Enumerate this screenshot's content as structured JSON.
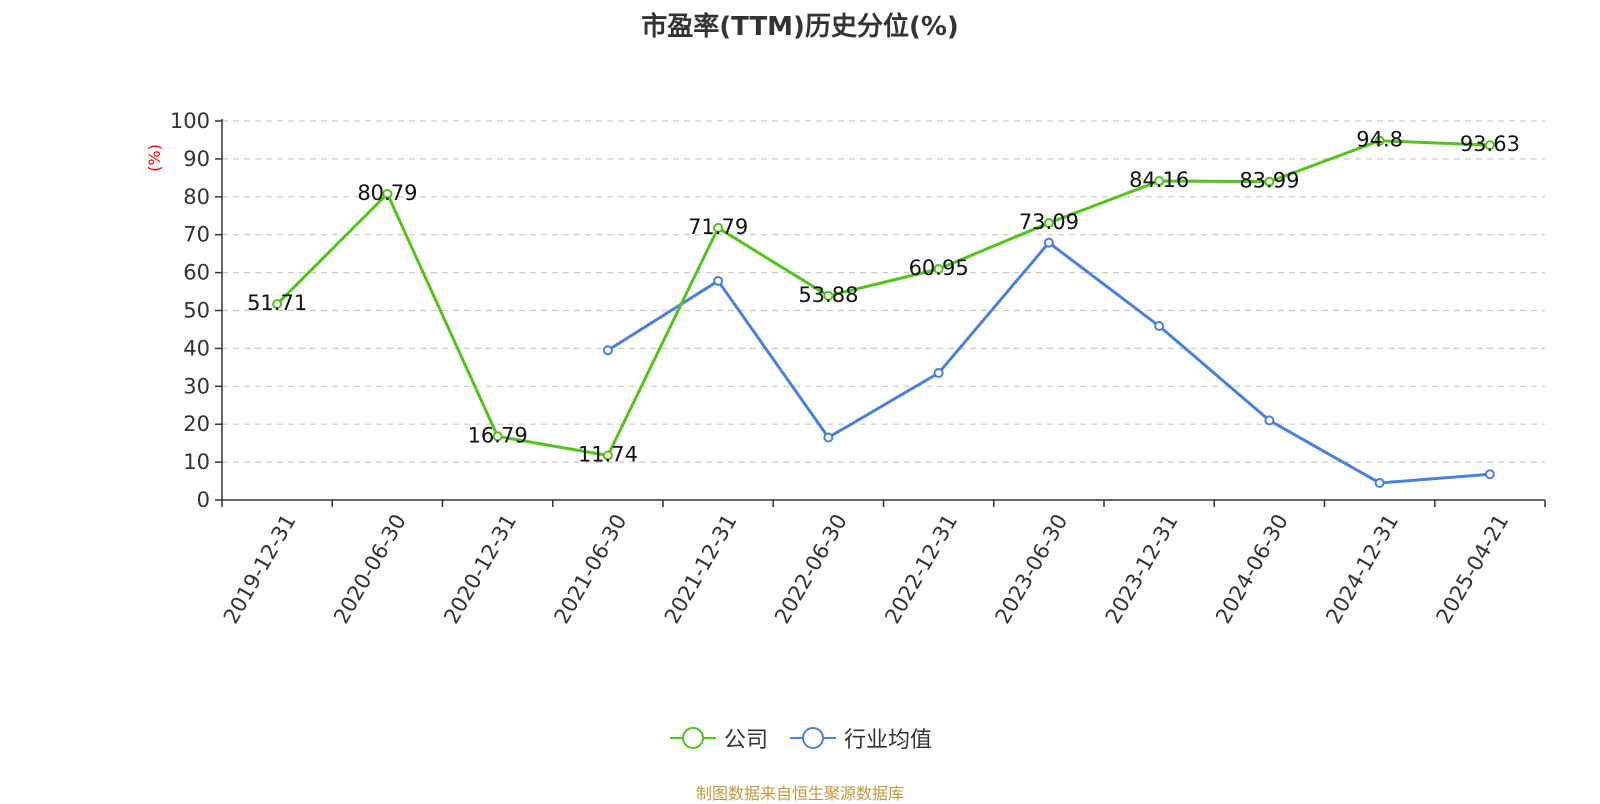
{
  "chart_data": {
    "type": "line",
    "title": "市盈率(TTM)历史分位(%)",
    "ylabel": "(%)",
    "xlabel": "",
    "ylim": [
      0,
      100
    ],
    "yticks": [
      0,
      10,
      20,
      30,
      40,
      50,
      60,
      70,
      80,
      90,
      100
    ],
    "grid": true,
    "legend_position": "bottom",
    "categories": [
      "2019-12-31",
      "2020-06-30",
      "2020-12-31",
      "2021-06-30",
      "2021-12-31",
      "2022-06-30",
      "2022-12-31",
      "2023-06-30",
      "2023-12-31",
      "2024-06-30",
      "2024-12-31",
      "2025-04-21"
    ],
    "series": [
      {
        "name": "公司",
        "color": "#52c41a",
        "show_labels": true,
        "values": [
          51.71,
          80.79,
          16.79,
          11.74,
          71.79,
          53.88,
          60.95,
          73.09,
          84.16,
          83.99,
          94.8,
          93.63
        ]
      },
      {
        "name": "行业均值",
        "color": "#4a80e0",
        "show_labels": false,
        "values": [
          null,
          null,
          null,
          39.5,
          57.8,
          16.5,
          33.5,
          67.9,
          45.9,
          21.0,
          4.5,
          6.8
        ]
      }
    ]
  },
  "footer": "制图数据来自恒生聚源数据库"
}
